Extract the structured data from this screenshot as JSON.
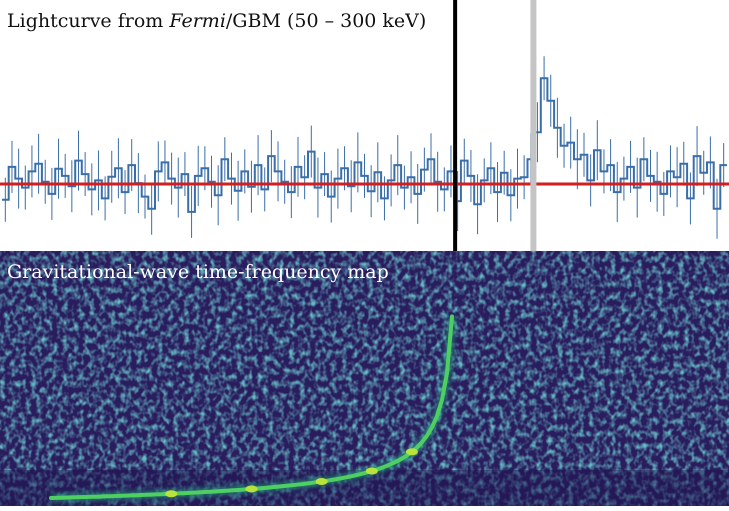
{
  "chart_data": [
    {
      "type": "line",
      "title_parts": {
        "prefix": "Lightcurve from ",
        "instrument": "Fermi",
        "suffix": "/GBM (50 – 300 keV)"
      },
      "colors": {
        "data": "#3a6ea8",
        "background_fit": "#d21e1e",
        "gw_trigger": "#000000",
        "grb_onset": "#c4c4c4"
      },
      "grid": false,
      "n_bins": 109,
      "counts": [
        -0.35,
        0.38,
        0.12,
        -0.08,
        0.28,
        0.45,
        0.05,
        -0.22,
        0.34,
        0.18,
        -0.05,
        0.52,
        0.22,
        -0.12,
        0.08,
        -0.32,
        0.16,
        0.35,
        -0.18,
        0.42,
        0.02,
        -0.28,
        -0.55,
        0.28,
        0.48,
        0.12,
        -0.08,
        0.22,
        -0.62,
        0.18,
        0.35,
        0.05,
        -0.25,
        0.55,
        0.12,
        -0.15,
        0.28,
        -0.06,
        0.42,
        -0.12,
        0.62,
        0.28,
        0.05,
        -0.18,
        0.38,
        0.15,
        0.72,
        -0.08,
        0.22,
        -0.28,
        0.12,
        0.35,
        -0.05,
        0.48,
        0.18,
        -0.16,
        0.26,
        -0.32,
        0.08,
        0.42,
        -0.08,
        0.15,
        -0.22,
        0.32,
        0.55,
        0.05,
        -0.12,
        0.28,
        -0.38,
        0.52,
        0.18,
        -0.45,
        0.08,
        0.35,
        -0.18,
        0.25,
        -0.25,
        0.12,
        0.15,
        0.55,
        1.15,
        2.35,
        1.85,
        1.25,
        0.85,
        0.92,
        0.55,
        0.65,
        0.08,
        0.75,
        0.28,
        0.42,
        -0.18,
        0.12,
        0.38,
        -0.08,
        0.55,
        0.18,
        0.05,
        -0.22,
        0.28,
        0.15,
        0.45,
        -0.32,
        0.62,
        0.25,
        0.48,
        -0.55,
        0.42
      ],
      "background_level": 0.0,
      "gw_trigger_fraction": 0.625,
      "grb_onset_fraction": 0.733
    },
    {
      "type": "heatmap",
      "title": "Gravitational-wave time-frequency map",
      "colormap": "viridis",
      "chirp": {
        "start_fraction": 0.07,
        "merger_fraction": 0.62
      }
    }
  ]
}
